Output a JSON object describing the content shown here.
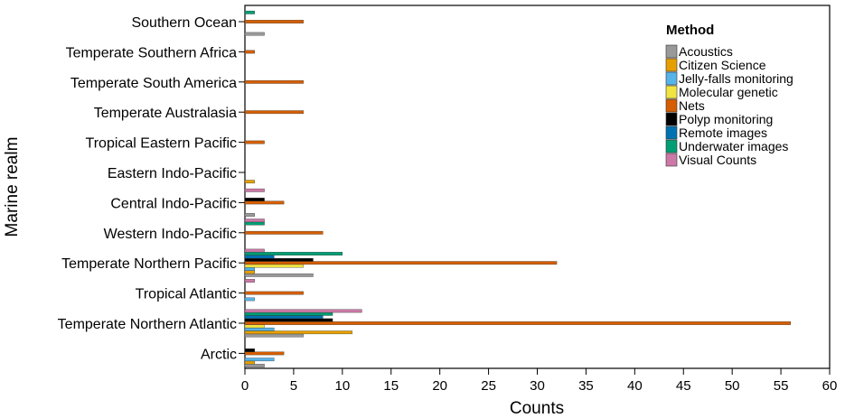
{
  "chart_data": {
    "type": "bar",
    "orientation": "horizontal",
    "xlabel": "Counts",
    "ylabel": "Marine realm",
    "xlim": [
      0,
      60
    ],
    "x_ticks": [
      "0",
      "5",
      "10",
      "15",
      "20",
      "25",
      "30",
      "35",
      "40",
      "45",
      "50",
      "55",
      "60"
    ],
    "grid": false,
    "legend": {
      "title": "Method",
      "placement": "top-right"
    },
    "categories": [
      "Southern Ocean",
      "Temperate Southern Africa",
      "Temperate South America",
      "Temperate Australasia",
      "Tropical Eastern Pacific",
      "Eastern Indo-Pacific",
      "Central Indo-Pacific",
      "Western Indo-Pacific",
      "Temperate Northern Pacific",
      "Tropical Atlantic",
      "Temperate Northern Atlantic ",
      "Arctic"
    ],
    "series": [
      {
        "name": "Acoustics",
        "color": "#999999",
        "values": [
          2,
          0,
          0,
          0,
          0,
          0,
          1,
          0,
          7,
          0,
          6,
          2
        ]
      },
      {
        "name": "Citizen Science",
        "color": "#E69F00",
        "values": [
          0,
          0,
          0,
          0,
          0,
          1,
          0,
          0,
          1,
          0,
          11,
          1
        ]
      },
      {
        "name": "Jelly-falls monitoring",
        "color": "#56B4E9",
        "values": [
          0,
          0,
          0,
          0,
          0,
          0,
          0,
          0,
          1,
          1,
          3,
          3
        ]
      },
      {
        "name": "Molecular genetic",
        "color": "#F0E442",
        "values": [
          0,
          0,
          0,
          0,
          0,
          0,
          0,
          0,
          6,
          0,
          2,
          0
        ]
      },
      {
        "name": "Nets",
        "color": "#D55E00",
        "values": [
          6,
          1,
          6,
          6,
          2,
          0,
          4,
          8,
          32,
          6,
          56,
          4
        ]
      },
      {
        "name": "Polyp monitoring",
        "color": "#000000",
        "values": [
          0,
          0,
          0,
          0,
          0,
          0,
          2,
          0,
          7,
          0,
          9,
          1
        ]
      },
      {
        "name": "Remote images",
        "color": "#0072B2",
        "values": [
          0,
          0,
          0,
          0,
          0,
          0,
          0,
          0,
          3,
          0,
          8,
          0
        ]
      },
      {
        "name": "Underwater images",
        "color": "#009E73",
        "values": [
          1,
          0,
          0,
          0,
          0,
          0,
          0,
          2,
          10,
          0,
          9,
          0
        ]
      },
      {
        "name": "Visual Counts",
        "color": "#CC79A7",
        "values": [
          0,
          0,
          0,
          0,
          0,
          0,
          2,
          2,
          2,
          1,
          12,
          0
        ]
      }
    ]
  }
}
